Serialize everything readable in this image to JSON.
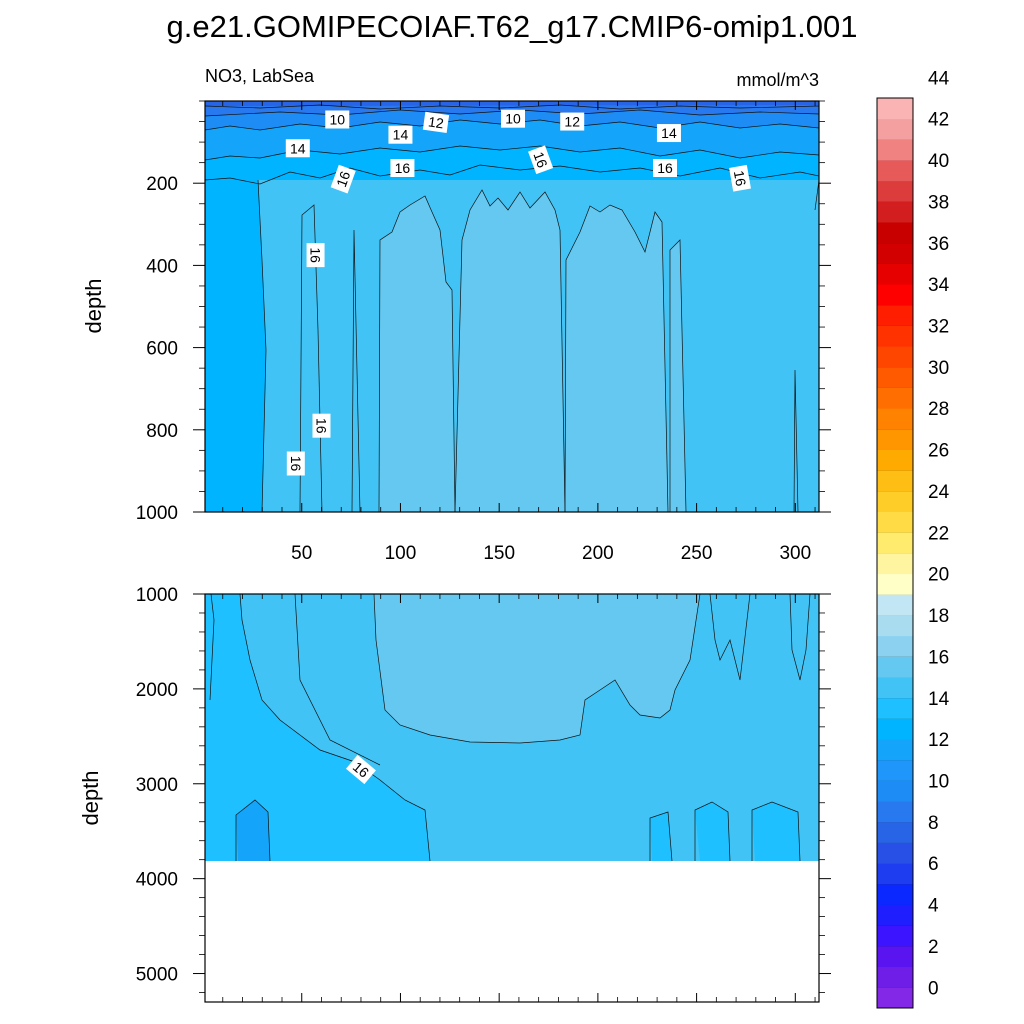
{
  "figure": {
    "title": "g.e21.GOMIPECOIAF.T62_g17.CMIP6-omip1.001",
    "variable_label": "NO3, LabSea",
    "units_label": "mmol/m^3"
  },
  "chart_data": [
    {
      "type": "heatmap",
      "panel": "upper",
      "title": "",
      "subtitle_left": "NO3, LabSea",
      "subtitle_right": "mmol/m^3",
      "xlabel": "",
      "ylabel": "depth",
      "xlim": [
        1,
        312
      ],
      "ylim": [
        1000,
        0
      ],
      "x_ticks": [
        50,
        100,
        150,
        200,
        250,
        300
      ],
      "y_ticks": [
        200,
        400,
        600,
        800,
        1000
      ],
      "contour_levels_labeled": [
        "10",
        "12",
        "10",
        "12",
        "14",
        "14",
        "14",
        "16",
        "16",
        "16",
        "16",
        "16",
        "16",
        "16",
        "16"
      ],
      "layers": [
        {
          "value_range": [
            8,
            10
          ],
          "depth_range": [
            0,
            30
          ],
          "color": "#2878f0"
        },
        {
          "value_range": [
            10,
            12
          ],
          "depth_range": [
            30,
            60
          ],
          "color": "#1e8cf5"
        },
        {
          "value_range": [
            12,
            14
          ],
          "depth_range": [
            60,
            130
          ],
          "color": "#14a5fa"
        },
        {
          "value_range": [
            14,
            16
          ],
          "depth_range": [
            130,
            1000
          ],
          "color": "#00b4ff"
        },
        {
          "value_range": [
            16,
            18
          ],
          "depth_range": [
            200,
            1000
          ],
          "color": "#41c3f5"
        },
        {
          "value_range": [
            18,
            20
          ],
          "x_range": [
            98,
            245
          ],
          "depth_range": [
            230,
            1000
          ],
          "color": "#64c8f0"
        }
      ]
    },
    {
      "type": "heatmap",
      "panel": "lower",
      "title": "",
      "xlabel": "",
      "ylabel": "depth",
      "xlim": [
        1,
        312
      ],
      "ylim": [
        5300,
        1000
      ],
      "y_ticks": [
        1000,
        2000,
        3000,
        4000,
        5000
      ],
      "data_bottom_depth": 3850,
      "contour_levels_labeled": [
        "16"
      ],
      "layers": [
        {
          "value_range": [
            16,
            18
          ],
          "depth_range": [
            1000,
            3850
          ],
          "color": "#41c3f5"
        },
        {
          "value_range": [
            18,
            20
          ],
          "x_range": [
            90,
            240
          ],
          "depth_range": [
            1000,
            2600
          ],
          "color": "#64c8f0"
        },
        {
          "value_range": [
            14,
            16
          ],
          "x_range": [
            1,
            115
          ],
          "depth_range": [
            1000,
            3850
          ],
          "color": "#1ec0ff"
        },
        {
          "value_range": [
            12,
            14
          ],
          "x_range": [
            15,
            33
          ],
          "depth_range": [
            3250,
            3850
          ],
          "color": "#14a5fa"
        }
      ]
    }
  ],
  "colorbar": {
    "labels": [
      "0",
      "2",
      "4",
      "6",
      "8",
      "10",
      "12",
      "14",
      "16",
      "18",
      "20",
      "22",
      "24",
      "26",
      "28",
      "30",
      "32",
      "34",
      "36",
      "38",
      "40",
      "42",
      "44"
    ],
    "colors": [
      "#8228e6",
      "#6e1ee6",
      "#5a14f0",
      "#3c14ff",
      "#1e1eff",
      "#0a28ff",
      "#1e3cf0",
      "#2850e6",
      "#2864e6",
      "#2878f0",
      "#1e8cf5",
      "#1e96fa",
      "#14a5fa",
      "#00b4ff",
      "#1ec0ff",
      "#41c3f5",
      "#64c8f0",
      "#8cd2f0",
      "#aadcf0",
      "#c3e6f5",
      "#ffffc8",
      "#fff5a0",
      "#ffeb6e",
      "#ffdc46",
      "#ffcd28",
      "#ffbe14",
      "#ffaa00",
      "#ff9600",
      "#ff8200",
      "#ff6e00",
      "#ff5a00",
      "#ff4600",
      "#ff3200",
      "#ff1e00",
      "#ff0000",
      "#e60000",
      "#d20000",
      "#c80000",
      "#d21e1e",
      "#dc3c3c",
      "#e65a5a",
      "#f08282",
      "#f5a0a0",
      "#fab4b4"
    ]
  }
}
